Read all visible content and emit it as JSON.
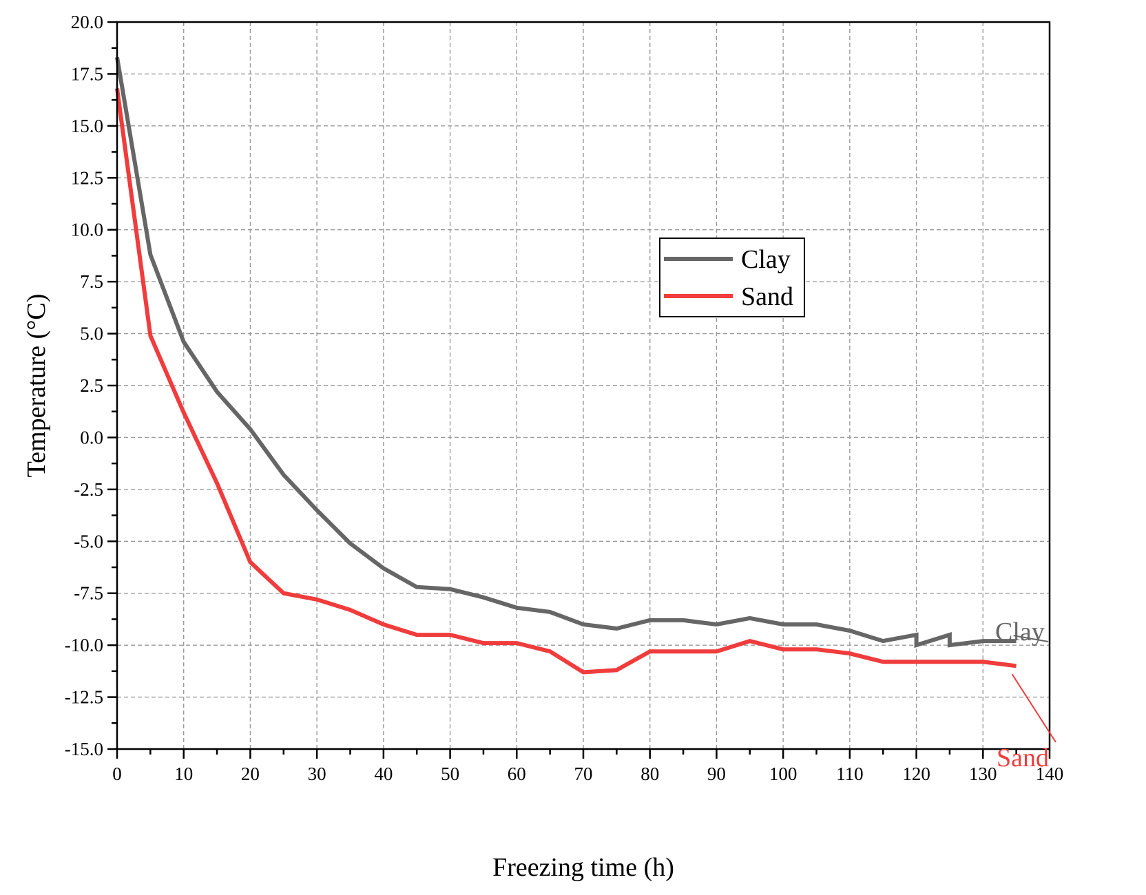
{
  "chart_data": {
    "type": "line",
    "title": "",
    "xlabel": "Freezing time (h)",
    "ylabel": "Temperature (°C)",
    "xlim": [
      0,
      140
    ],
    "ylim": [
      -15,
      20
    ],
    "xticks": [
      0,
      10,
      20,
      30,
      40,
      50,
      60,
      70,
      80,
      90,
      100,
      110,
      120,
      130,
      140
    ],
    "xtick_labels": [
      "0",
      "10",
      "20",
      "30",
      "40",
      "50",
      "60",
      "70",
      "80",
      "90",
      "100",
      "110",
      "120",
      "130",
      "140"
    ],
    "yticks": [
      20,
      17.5,
      15,
      12.5,
      10,
      7.5,
      5,
      2.5,
      0,
      -2.5,
      -5,
      -7.5,
      -10,
      -12.5,
      -15
    ],
    "ytick_labels": [
      "20.0",
      "17.5",
      "15.0",
      "12.5",
      "10.0",
      "7.5",
      "5.0",
      "2.5",
      "0.0",
      "-2.5",
      "-5.0",
      "-7.5",
      "-10.0",
      "-12.5",
      "-15.0"
    ],
    "grid": true,
    "legend_position": "upper-center",
    "series": [
      {
        "name": "Clay",
        "color": "#666666",
        "x": [
          0,
          5,
          10,
          15,
          20,
          25,
          30,
          35,
          40,
          45,
          50,
          55,
          60,
          65,
          70,
          75,
          80,
          85,
          90,
          95,
          100,
          105,
          110,
          115,
          120,
          120,
          125,
          125,
          130,
          135
        ],
        "y": [
          18.3,
          8.8,
          4.6,
          2.2,
          0.4,
          -1.8,
          -3.5,
          -5.1,
          -6.3,
          -7.2,
          -7.3,
          -7.7,
          -8.2,
          -8.4,
          -9.0,
          -9.2,
          -8.8,
          -8.8,
          -9.0,
          -8.7,
          -9.0,
          -9.0,
          -9.3,
          -9.8,
          -9.5,
          -10.0,
          -9.5,
          -10.0,
          -9.8,
          -9.8
        ]
      },
      {
        "name": "Sand",
        "color": "#f03c3c",
        "x": [
          0,
          5,
          10,
          15,
          20,
          25,
          30,
          35,
          40,
          45,
          50,
          55,
          60,
          65,
          70,
          75,
          80,
          85,
          90,
          95,
          100,
          105,
          110,
          115,
          120,
          125,
          130,
          135
        ],
        "y": [
          16.8,
          4.9,
          1.2,
          -2.2,
          -6.0,
          -7.5,
          -7.8,
          -8.3,
          -9.0,
          -9.5,
          -9.5,
          -9.9,
          -9.9,
          -10.3,
          -11.3,
          -11.2,
          -10.3,
          -10.3,
          -10.3,
          -9.8,
          -10.2,
          -10.2,
          -10.4,
          -10.8,
          -10.8,
          -10.8,
          -10.8,
          -11.0
        ]
      }
    ],
    "annotations": [
      {
        "text": "Clay",
        "color": "#666666",
        "x": 135,
        "y": -9.8,
        "points_to": "Clay"
      },
      {
        "text": "Sand",
        "color": "#f03c3c",
        "x": 135,
        "y": -11.0,
        "points_to": "Sand"
      }
    ]
  }
}
